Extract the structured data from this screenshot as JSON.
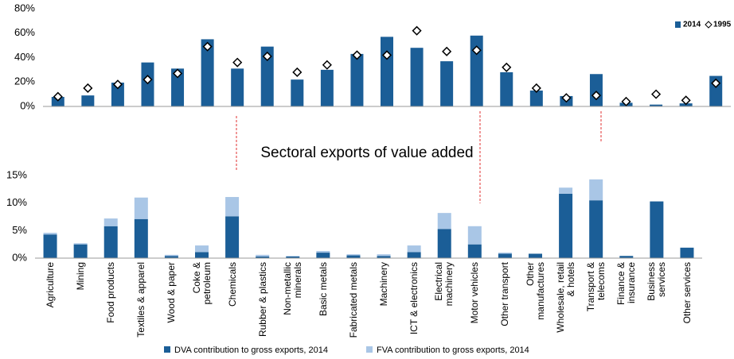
{
  "chart_data": [
    {
      "type": "bar",
      "categories": [
        null,
        null,
        null,
        null,
        null,
        null,
        null,
        null,
        null,
        null,
        null,
        null,
        null,
        null,
        null,
        null,
        null,
        null,
        null,
        null,
        null,
        null,
        null
      ],
      "series": [
        {
          "name": "2014",
          "color": "#1b5e97",
          "values": [
            7.8,
            9,
            19.5,
            36,
            31,
            55,
            31,
            49,
            22,
            30,
            43,
            57,
            48,
            37,
            58,
            28,
            13,
            8.5,
            26.5,
            3,
            1.5,
            2.5,
            25
          ]
        },
        {
          "name": "1995",
          "marker": "diamond",
          "color": "#ffffff",
          "values": [
            8,
            15,
            18,
            22,
            27,
            49,
            36,
            41,
            28,
            34,
            42,
            42,
            62,
            45,
            46,
            32,
            15,
            7,
            9,
            4,
            10,
            5,
            19
          ]
        }
      ],
      "ylim": [
        0,
        80
      ],
      "yticks": [
        {
          "value": 0,
          "label": "0%"
        },
        {
          "value": 20,
          "label": "20%"
        },
        {
          "value": 40,
          "label": "40%"
        },
        {
          "value": 60,
          "label": "60%"
        },
        {
          "value": 80,
          "label": "80%"
        }
      ],
      "legend": "top-right"
    },
    {
      "type": "stacked_bar",
      "title": "Sectoral exports of value added",
      "categories": [
        "Agriculture",
        "Mining",
        "Food products",
        "Textiles & apparel",
        "Wood & paper",
        "Coke & petroleum",
        "Chemicals",
        "Rubber & plastics",
        "Non-metallic minerals",
        "Basic metals",
        "Fabricated metals",
        "Machinery",
        "ICT & electronics",
        "Electrical machinery",
        "Motor vehicles",
        "Other transport",
        "Other manufactures",
        "Wholesale, retail & hotels",
        "Transport & telecoms",
        "Finance & insurance",
        "Business services",
        "Other services"
      ],
      "series": [
        {
          "name": "DVA contribution to gross exports, 2014",
          "color": "#1b5e97",
          "values": [
            4.3,
            2.5,
            5.8,
            7.1,
            0.4,
            1.1,
            7.6,
            0.3,
            0.3,
            1.0,
            0.5,
            0.4,
            1.1,
            5.3,
            2.5,
            0.8,
            0.8,
            11.7,
            10.5,
            0.4,
            10.3,
            1.9
          ]
        },
        {
          "name": "FVA contribution to gross exports, 2014",
          "color": "#a9c6e6",
          "values": [
            0.3,
            0.2,
            1.4,
            3.9,
            0.2,
            1.2,
            3.5,
            0.3,
            0.1,
            0.3,
            0.2,
            0.3,
            1.2,
            2.9,
            3.3,
            0.2,
            0,
            1.1,
            3.8,
            0,
            0,
            0
          ]
        }
      ],
      "ylim": [
        0,
        15
      ],
      "yticks": [
        {
          "value": 0,
          "label": "0%"
        },
        {
          "value": 5,
          "label": "5%"
        },
        {
          "value": 10,
          "label": "10%"
        },
        {
          "value": 15,
          "label": "15%"
        }
      ],
      "legend": "bottom"
    }
  ]
}
